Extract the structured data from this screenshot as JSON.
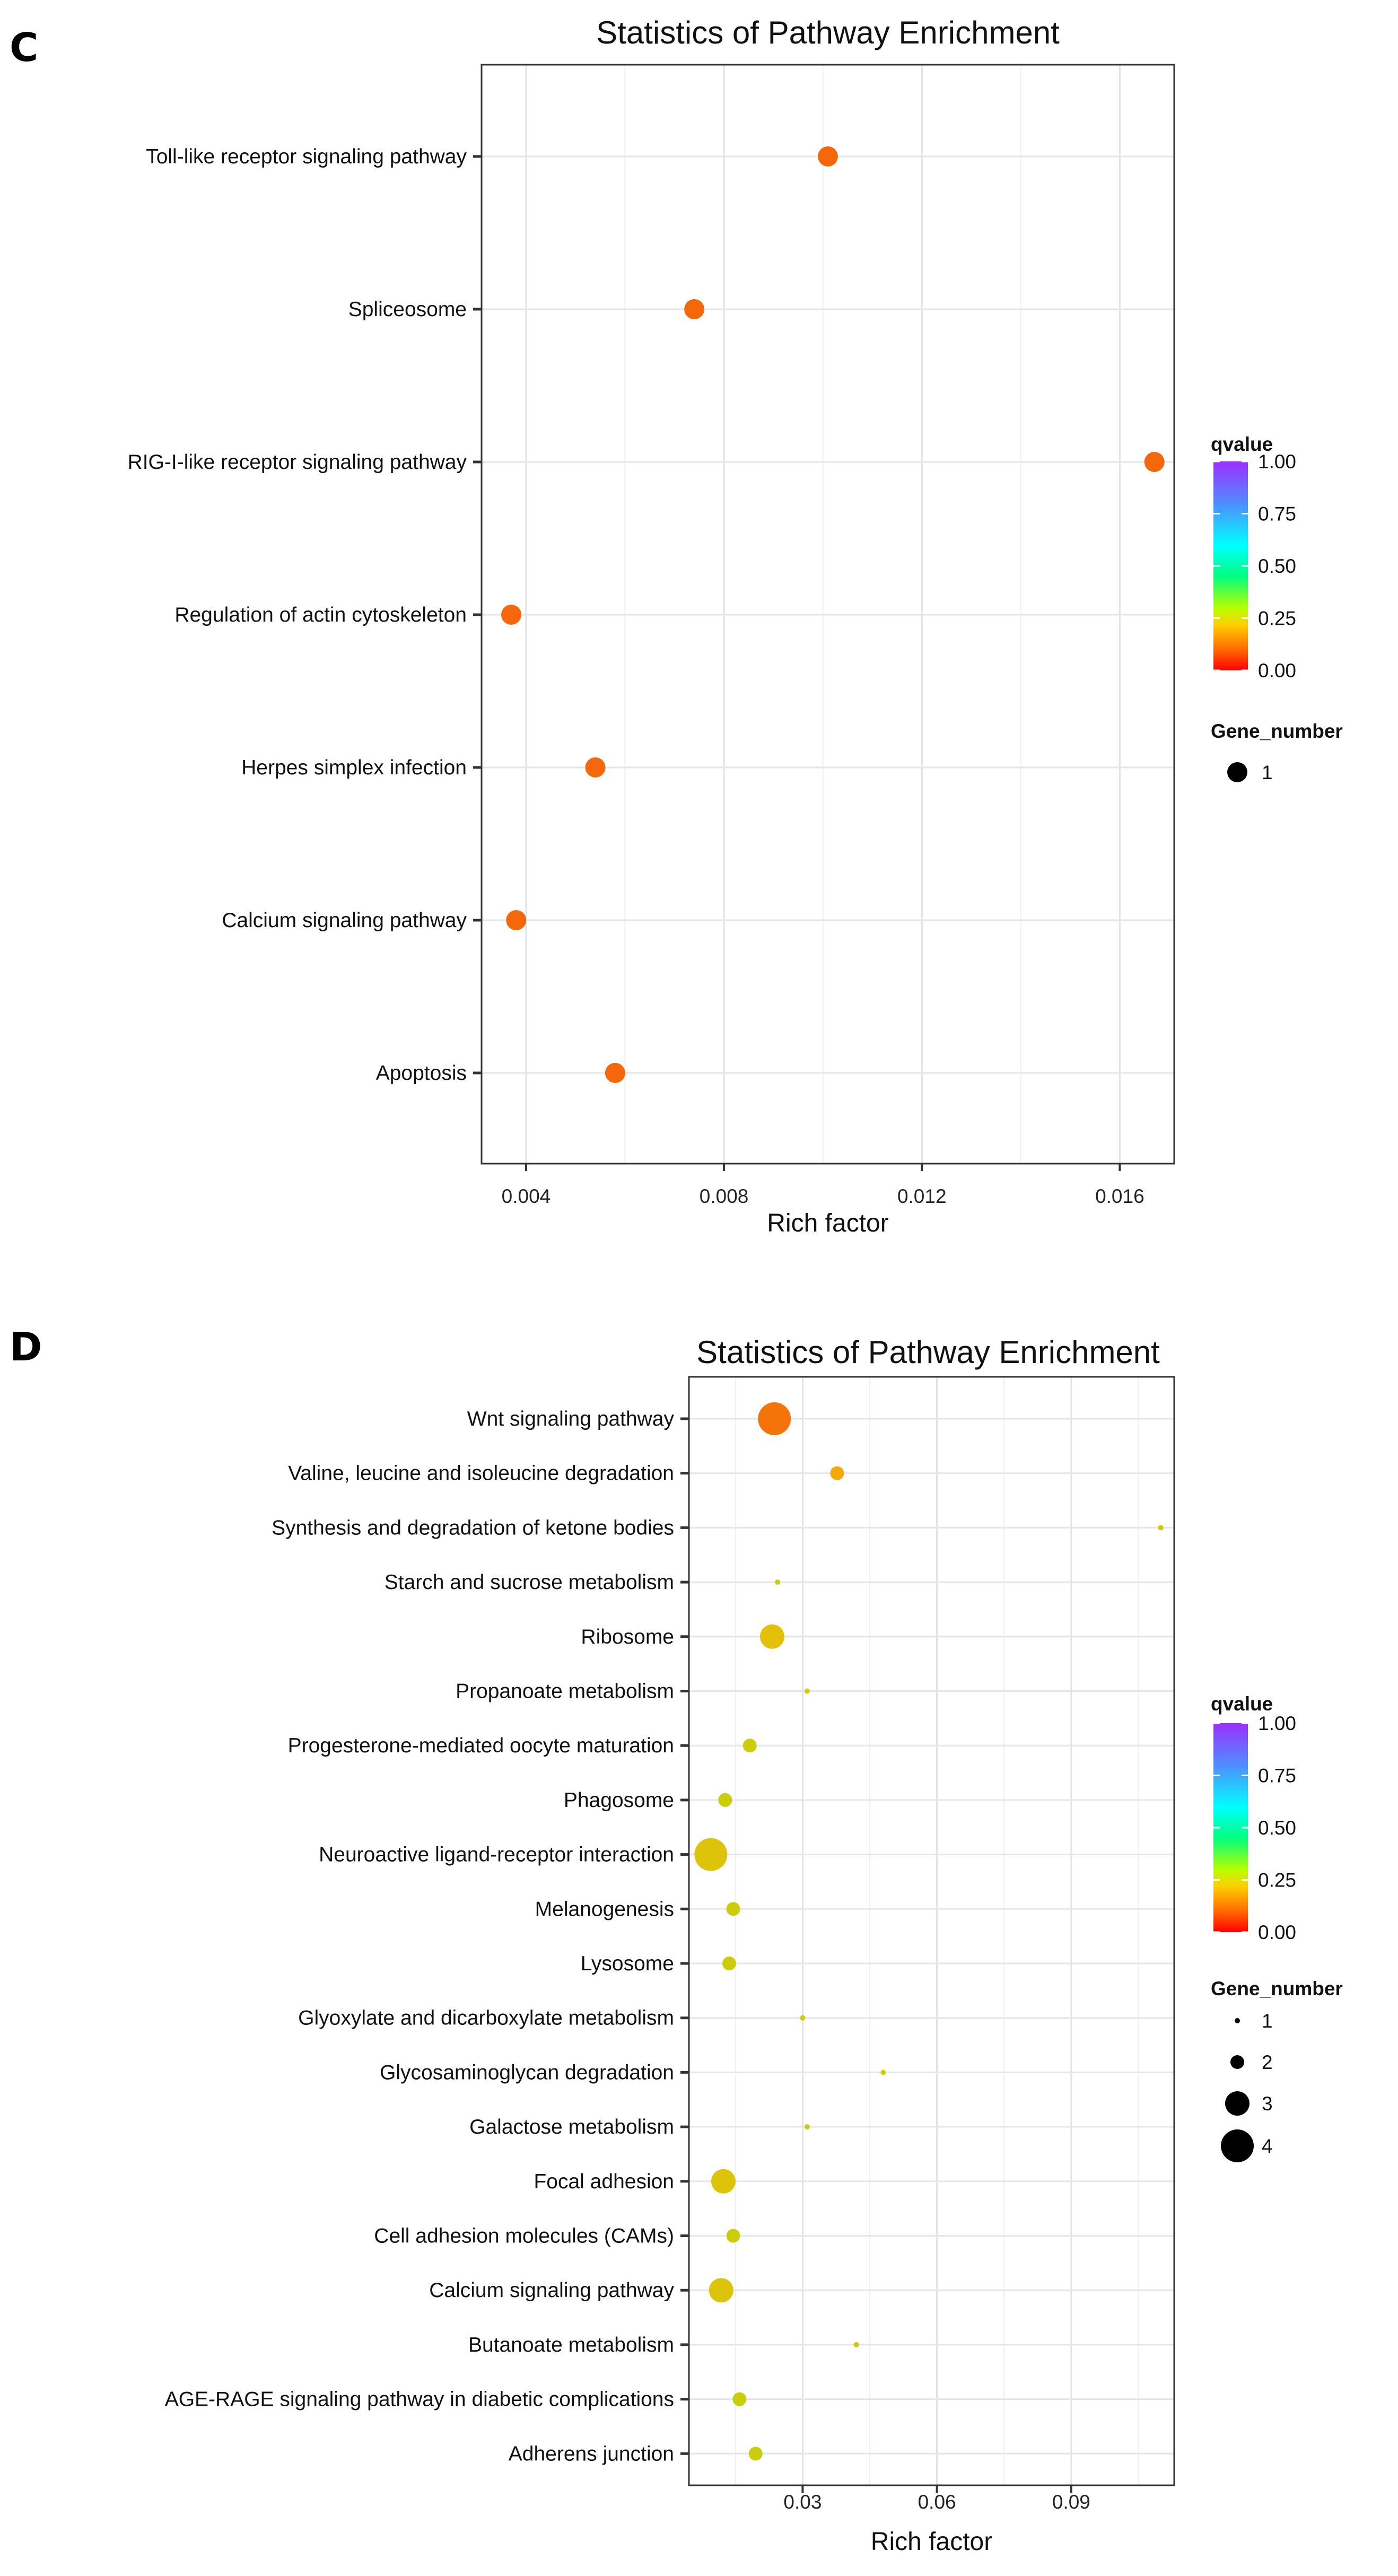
{
  "charts": [
    {
      "panel": "C",
      "type": "scatter",
      "title": "Statistics of Pathway Enrichment",
      "xlabel": "Rich factor",
      "ylabel": "",
      "xlim": [
        0.0031,
        0.0171
      ],
      "xticks": [
        0.004,
        0.008,
        0.012,
        0.016
      ],
      "xtick_labels": [
        "0.004",
        "0.008",
        "0.012",
        "0.016"
      ],
      "categories": [
        "Toll-like receptor signaling pathway",
        "Spliceosome",
        "RIG-I-like receptor signaling pathway",
        "Regulation of actin cytoskeleton",
        "Herpes simplex infection",
        "Calcium signaling pathway",
        "Apoptosis"
      ],
      "points": [
        {
          "pathway": "Toll-like receptor signaling pathway",
          "rich_factor": 0.0101,
          "qvalue": 0.1,
          "gene_number": 1
        },
        {
          "pathway": "Spliceosome",
          "rich_factor": 0.0074,
          "qvalue": 0.1,
          "gene_number": 1
        },
        {
          "pathway": "RIG-I-like receptor signaling pathway",
          "rich_factor": 0.0167,
          "qvalue": 0.1,
          "gene_number": 1
        },
        {
          "pathway": "Regulation of actin cytoskeleton",
          "rich_factor": 0.0037,
          "qvalue": 0.1,
          "gene_number": 1
        },
        {
          "pathway": "Herpes simplex infection",
          "rich_factor": 0.0054,
          "qvalue": 0.1,
          "gene_number": 1
        },
        {
          "pathway": "Calcium signaling pathway",
          "rich_factor": 0.0038,
          "qvalue": 0.1,
          "gene_number": 1
        },
        {
          "pathway": "Apoptosis",
          "rich_factor": 0.0058,
          "qvalue": 0.1,
          "gene_number": 1
        }
      ],
      "colorbar": {
        "title": "qvalue",
        "labels": [
          "1.00",
          "0.75",
          "0.50",
          "0.25",
          "0.00"
        ],
        "values": [
          1.0,
          0.75,
          0.5,
          0.25,
          0.0
        ]
      },
      "size_legend": {
        "title": "Gene_number",
        "labels": [
          "1"
        ],
        "values": [
          1
        ]
      },
      "size_map": {
        "1": 19
      }
    },
    {
      "panel": "D",
      "type": "scatter",
      "title": "Statistics of Pathway Enrichment",
      "xlabel": "Rich factor",
      "ylabel": "",
      "xlim": [
        0.0046,
        0.113
      ],
      "xticks": [
        0.03,
        0.06,
        0.09
      ],
      "xtick_labels": [
        "0.03",
        "0.06",
        "0.09"
      ],
      "categories": [
        "Wnt signaling pathway",
        "Valine, leucine and isoleucine degradation",
        "Synthesis and degradation of ketone bodies",
        "Starch and sucrose metabolism",
        "Ribosome",
        "Propanoate metabolism",
        "Progesterone-mediated oocyte maturation",
        "Phagosome",
        "Neuroactive ligand-receptor interaction",
        "Melanogenesis",
        "Lysosome",
        "Glyoxylate and dicarboxylate metabolism",
        "Glycosaminoglycan degradation",
        "Galactose metabolism",
        "Focal adhesion",
        "Cell adhesion molecules (CAMs)",
        "Calcium signaling pathway",
        "Butanoate metabolism",
        "AGE-RAGE signaling pathway in diabetic complications",
        "Adherens junction"
      ],
      "points": [
        {
          "pathway": "Wnt signaling pathway",
          "rich_factor": 0.0237,
          "qvalue": 0.12,
          "gene_number": 4
        },
        {
          "pathway": "Valine, leucine and isoleucine degradation",
          "rich_factor": 0.0377,
          "qvalue": 0.2,
          "gene_number": 2
        },
        {
          "pathway": "Synthesis and degradation of ketone bodies",
          "rich_factor": 0.11,
          "qvalue": 0.27,
          "gene_number": 1
        },
        {
          "pathway": "Starch and sucrose metabolism",
          "rich_factor": 0.0244,
          "qvalue": 0.27,
          "gene_number": 1
        },
        {
          "pathway": "Ribosome",
          "rich_factor": 0.0232,
          "qvalue": 0.24,
          "gene_number": 3
        },
        {
          "pathway": "Propanoate metabolism",
          "rich_factor": 0.031,
          "qvalue": 0.27,
          "gene_number": 1
        },
        {
          "pathway": "Progesterone-mediated oocyte maturation",
          "rich_factor": 0.0182,
          "qvalue": 0.27,
          "gene_number": 2
        },
        {
          "pathway": "Phagosome",
          "rich_factor": 0.0127,
          "qvalue": 0.27,
          "gene_number": 2
        },
        {
          "pathway": "Neuroactive ligand-receptor interaction",
          "rich_factor": 0.0095,
          "qvalue": 0.25,
          "gene_number": 4
        },
        {
          "pathway": "Melanogenesis",
          "rich_factor": 0.0145,
          "qvalue": 0.27,
          "gene_number": 2
        },
        {
          "pathway": "Lysosome",
          "rich_factor": 0.0136,
          "qvalue": 0.27,
          "gene_number": 2
        },
        {
          "pathway": "Glyoxylate and dicarboxylate metabolism",
          "rich_factor": 0.03,
          "qvalue": 0.27,
          "gene_number": 1
        },
        {
          "pathway": "Glycosaminoglycan degradation",
          "rich_factor": 0.048,
          "qvalue": 0.27,
          "gene_number": 1
        },
        {
          "pathway": "Galactose metabolism",
          "rich_factor": 0.031,
          "qvalue": 0.27,
          "gene_number": 1
        },
        {
          "pathway": "Focal adhesion",
          "rich_factor": 0.0123,
          "qvalue": 0.25,
          "gene_number": 3
        },
        {
          "pathway": "Cell adhesion molecules (CAMs)",
          "rich_factor": 0.0145,
          "qvalue": 0.27,
          "gene_number": 2
        },
        {
          "pathway": "Calcium signaling pathway",
          "rich_factor": 0.0118,
          "qvalue": 0.25,
          "gene_number": 3
        },
        {
          "pathway": "Butanoate metabolism",
          "rich_factor": 0.042,
          "qvalue": 0.27,
          "gene_number": 1
        },
        {
          "pathway": "AGE-RAGE signaling pathway in diabetic complications",
          "rich_factor": 0.0159,
          "qvalue": 0.27,
          "gene_number": 2
        },
        {
          "pathway": "Adherens junction",
          "rich_factor": 0.0195,
          "qvalue": 0.27,
          "gene_number": 2
        }
      ],
      "colorbar": {
        "title": "qvalue",
        "labels": [
          "1.00",
          "0.75",
          "0.50",
          "0.25",
          "0.00"
        ],
        "values": [
          1.0,
          0.75,
          0.5,
          0.25,
          0.0
        ]
      },
      "size_legend": {
        "title": "Gene_number",
        "labels": [
          "1",
          "2",
          "3",
          "4"
        ],
        "values": [
          1,
          2,
          3,
          4
        ]
      },
      "size_map": {
        "1": 5,
        "2": 13,
        "3": 23,
        "4": 31
      }
    }
  ]
}
